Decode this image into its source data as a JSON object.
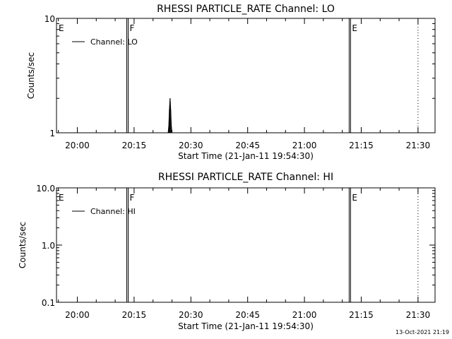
{
  "chart_data": [
    {
      "type": "line",
      "title": "RHESSI PARTICLE_RATE Channel: LO",
      "xlabel": "Start Time (21-Jan-11 19:54:30)",
      "ylabel": "Counts/sec",
      "yscale": "log",
      "ylim": [
        1,
        10
      ],
      "yticks": [
        1,
        10
      ],
      "ytick_labels": [
        "1",
        "10"
      ],
      "xlim": [
        "19:54:30",
        "21:34:30"
      ],
      "xticks": [
        "20:00",
        "20:15",
        "20:30",
        "20:45",
        "21:00",
        "21:15",
        "21:30"
      ],
      "legend": {
        "position": "top-left",
        "label": "Channel: LO"
      },
      "series": [
        {
          "name": "Channel: LO",
          "x": [
            "20:24:00",
            "20:24:10",
            "20:24:20",
            "20:24:30",
            "20:24:40",
            "20:24:50",
            "20:25:00",
            "20:25:10"
          ],
          "y": [
            1,
            1.15,
            1.6,
            2.0,
            1.6,
            1.15,
            1,
            1
          ]
        }
      ],
      "markers": [
        {
          "label": "E",
          "time": "19:54:30",
          "line": "none"
        },
        {
          "label": "F",
          "time": "20:13:15",
          "line": "solid"
        },
        {
          "label": "E",
          "time": "21:12:00",
          "line": "solid"
        },
        {
          "label": "",
          "time": "21:30:00",
          "line": "dotted"
        }
      ]
    },
    {
      "type": "line",
      "title": "RHESSI PARTICLE_RATE Channel: HI",
      "xlabel": "Start Time (21-Jan-11 19:54:30)",
      "ylabel": "Counts/sec",
      "yscale": "log",
      "ylim": [
        0.1,
        10
      ],
      "yticks": [
        0.1,
        1,
        10
      ],
      "ytick_labels": [
        "0.1",
        "1.0",
        "10.0"
      ],
      "xlim": [
        "19:54:30",
        "21:34:30"
      ],
      "xticks": [
        "20:00",
        "20:15",
        "20:30",
        "20:45",
        "21:00",
        "21:15",
        "21:30"
      ],
      "legend": {
        "position": "top-left",
        "label": "Channel: HI"
      },
      "series": [
        {
          "name": "Channel: HI",
          "x": [],
          "y": []
        }
      ],
      "markers": [
        {
          "label": "E",
          "time": "19:54:30",
          "line": "none"
        },
        {
          "label": "F",
          "time": "20:13:15",
          "line": "solid"
        },
        {
          "label": "E",
          "time": "21:12:00",
          "line": "solid"
        },
        {
          "label": "",
          "time": "21:30:00",
          "line": "dotted"
        }
      ]
    }
  ],
  "footer": {
    "timestamp": "13-Oct-2021 21:19"
  }
}
